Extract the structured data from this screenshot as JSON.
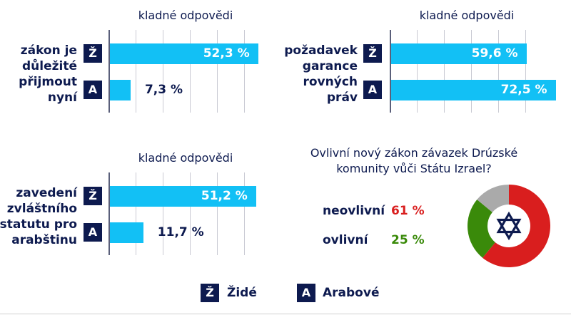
{
  "chart_data": [
    {
      "type": "bar",
      "orientation": "horizontal",
      "title": "kladné odpovědi",
      "categories": [
        "zákon je důležité přijmout nyní"
      ],
      "series": [
        {
          "name": "Židé",
          "badge": "Ž",
          "values": [
            52.3
          ],
          "labels": [
            "52,3 %"
          ]
        },
        {
          "name": "Arabové",
          "badge": "A",
          "values": [
            7.3
          ],
          "labels": [
            "7,3 %"
          ]
        }
      ],
      "category_lines": [
        "zákon je",
        "důležité",
        "přijmout",
        "nyní"
      ],
      "grid": true,
      "color": "#12c0f5"
    },
    {
      "type": "bar",
      "orientation": "horizontal",
      "title": "kladné odpovědi",
      "categories": [
        "požadavek garance rovných práv"
      ],
      "series": [
        {
          "name": "Židé",
          "badge": "Ž",
          "values": [
            59.6
          ],
          "labels": [
            "59,6 %"
          ]
        },
        {
          "name": "Arabové",
          "badge": "A",
          "values": [
            72.5
          ],
          "labels": [
            "72,5 %"
          ]
        }
      ],
      "category_lines": [
        "požadavek",
        "garance",
        "rovných",
        "práv"
      ],
      "grid": true,
      "color": "#12c0f5"
    },
    {
      "type": "bar",
      "orientation": "horizontal",
      "title": "kladné odpovědi",
      "categories": [
        "zavedení zvláštního statutu pro arabštinu"
      ],
      "series": [
        {
          "name": "Židé",
          "badge": "Ž",
          "values": [
            51.2
          ],
          "labels": [
            "51,2 %"
          ]
        },
        {
          "name": "Arabové",
          "badge": "A",
          "values": [
            11.7
          ],
          "labels": [
            "11,7 %"
          ]
        }
      ],
      "category_lines": [
        "zavedení",
        "zvláštního",
        "statutu pro",
        "arabštinu"
      ],
      "grid": true,
      "color": "#12c0f5"
    },
    {
      "type": "pie",
      "donut": true,
      "title": "Ovlivní nový zákon závazek Drúzské komunity vůči Státu Izrael?",
      "title_lines": [
        "Ovlivní nový zákon závazek Drúzské",
        "komunity vůči Státu Izrael?"
      ],
      "slices": [
        {
          "label": "neovlivní",
          "value": 61,
          "text": "61 %",
          "color": "#d91e1e"
        },
        {
          "label": "ovlivní",
          "value": 25,
          "text": "25 %",
          "color": "#3a8a0a"
        },
        {
          "label": "",
          "value": 14,
          "color": "#aaaaaa"
        }
      ],
      "center_icon": "star-of-david-icon"
    }
  ],
  "legend": [
    {
      "badge": "Ž",
      "label": "Židé"
    },
    {
      "badge": "A",
      "label": "Arabové"
    }
  ],
  "colors": {
    "navy": "#0d1a4f",
    "bar": "#12c0f5"
  }
}
